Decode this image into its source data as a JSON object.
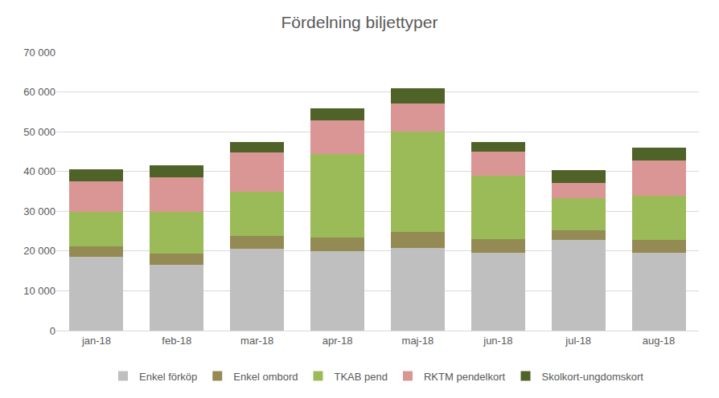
{
  "chart_data": {
    "type": "bar",
    "title": "Fördelning biljettyper",
    "stacked": true,
    "grid": true,
    "legend": "bottom",
    "categories": [
      "jan-18",
      "feb-18",
      "mar-18",
      "apr-18",
      "maj-18",
      "jun-18",
      "jul-18",
      "aug-18"
    ],
    "series": [
      {
        "name": "Enkel förköp",
        "color": "#bfbfbf",
        "values": [
          18500,
          16600,
          20500,
          19900,
          20800,
          19500,
          22800,
          19500
        ]
      },
      {
        "name": "Enkel ombord",
        "color": "#948a54",
        "values": [
          2700,
          2700,
          3300,
          3500,
          4100,
          3500,
          2400,
          3300
        ]
      },
      {
        "name": "TKAB pend",
        "color": "#9bbb59",
        "values": [
          8600,
          10500,
          11200,
          21000,
          25200,
          15900,
          8100,
          11100
        ]
      },
      {
        "name": "RKTM pendelkort",
        "color": "#d99694",
        "values": [
          7800,
          8700,
          9800,
          8500,
          7000,
          6100,
          3900,
          8800
        ]
      },
      {
        "name": "Skolkort-ungdomskort",
        "color": "#4f6228",
        "values": [
          2900,
          3100,
          2700,
          2900,
          3900,
          2500,
          3100,
          3200
        ]
      }
    ],
    "ylim": [
      0,
      70000
    ],
    "yticks": [
      0,
      {
        "value": 10000,
        "label": "10 000"
      },
      {
        "value": 20000,
        "label": "20 000"
      },
      {
        "value": 30000,
        "label": "30 000"
      },
      {
        "value": 40000,
        "label": "40 000"
      },
      {
        "value": 50000,
        "label": "50 000"
      },
      {
        "value": 60000,
        "label": "60 000"
      },
      {
        "value": 70000,
        "label": "70 000"
      }
    ]
  }
}
